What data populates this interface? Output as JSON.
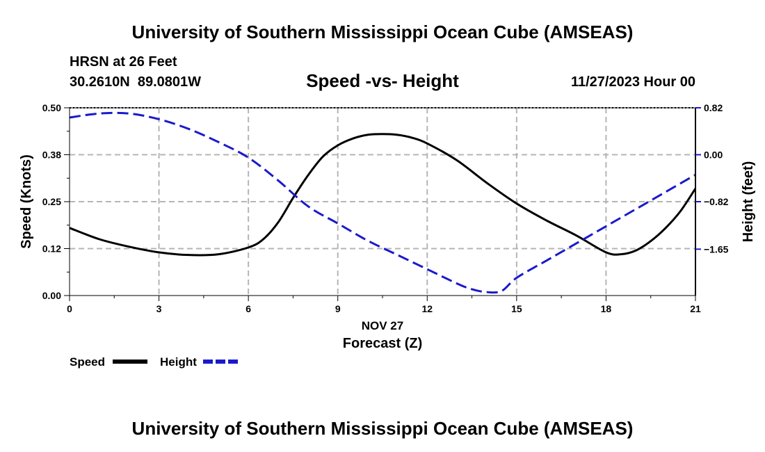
{
  "chart_data": {
    "type": "line",
    "title": "University of Southern Mississippi Ocean Cube (AMSEAS)",
    "footer_title": "University of Southern Mississippi Ocean Cube (AMSEAS)",
    "station": "HRSN at 26 Feet",
    "coordinates": "30.2610N  89.0801W",
    "subtitle": "Speed -vs- Height",
    "datetime": "11/27/2023 Hour 00",
    "date_label": "NOV 27",
    "xlabel": "Forecast (Z)",
    "ylabel_left": "Speed (Knots)",
    "ylabel_right": "Height (feet)",
    "xlim": [
      0,
      21
    ],
    "ylim_left": [
      0,
      0.5
    ],
    "ylim_right": [
      -2.46,
      0.82
    ],
    "grid": true,
    "x_ticks": [
      {
        "value": 0,
        "label": "0"
      },
      {
        "value": 3,
        "label": "3"
      },
      {
        "value": 6,
        "label": "6"
      },
      {
        "value": 9,
        "label": "9"
      },
      {
        "value": 12,
        "label": "12"
      },
      {
        "value": 15,
        "label": "15"
      },
      {
        "value": 18,
        "label": "18"
      },
      {
        "value": 21,
        "label": "21"
      }
    ],
    "y_ticks_left": [
      {
        "value": 0.0,
        "label": "0.00"
      },
      {
        "value": 0.125,
        "label": "0.12"
      },
      {
        "value": 0.25,
        "label": "0.25"
      },
      {
        "value": 0.375,
        "label": "0.38"
      },
      {
        "value": 0.5,
        "label": "0.50"
      }
    ],
    "y_ticks_right": [
      {
        "value": 0.82,
        "label": "0.82"
      },
      {
        "value": 0.0,
        "label": "0.00"
      },
      {
        "value": -0.82,
        "label": "−0.82"
      },
      {
        "value": -1.65,
        "label": "−1.65"
      }
    ],
    "series": [
      {
        "name": "Speed",
        "axis": "left",
        "color": "#000000",
        "dash": "solid",
        "x": [
          0,
          1,
          2,
          3,
          4,
          5,
          6,
          6.5,
          7,
          7.5,
          8,
          8.5,
          9,
          9.5,
          10,
          10.5,
          11,
          11.5,
          12,
          13,
          14,
          15,
          16,
          17,
          18,
          18.5,
          19,
          19.5,
          20,
          20.5,
          21
        ],
        "values": [
          0.18,
          0.15,
          0.13,
          0.115,
          0.108,
          0.11,
          0.128,
          0.15,
          0.195,
          0.26,
          0.32,
          0.37,
          0.4,
          0.418,
          0.428,
          0.43,
          0.428,
          0.42,
          0.405,
          0.36,
          0.3,
          0.245,
          0.2,
          0.16,
          0.115,
          0.11,
          0.12,
          0.145,
          0.18,
          0.225,
          0.285
        ]
      },
      {
        "name": "Height",
        "axis": "right",
        "color": "#1a1acc",
        "dash": "dashed",
        "x": [
          0,
          1,
          2,
          3,
          4,
          5,
          6,
          7,
          8,
          9,
          10,
          11,
          12,
          13,
          13.5,
          14,
          14.5,
          15,
          16,
          17,
          18,
          19,
          20,
          21
        ],
        "values": [
          0.65,
          0.72,
          0.72,
          0.62,
          0.45,
          0.22,
          -0.05,
          -0.45,
          -0.9,
          -1.2,
          -1.5,
          -1.75,
          -2.0,
          -2.25,
          -2.35,
          -2.4,
          -2.38,
          -2.15,
          -1.85,
          -1.55,
          -1.25,
          -0.95,
          -0.65,
          -0.35
        ]
      }
    ]
  }
}
